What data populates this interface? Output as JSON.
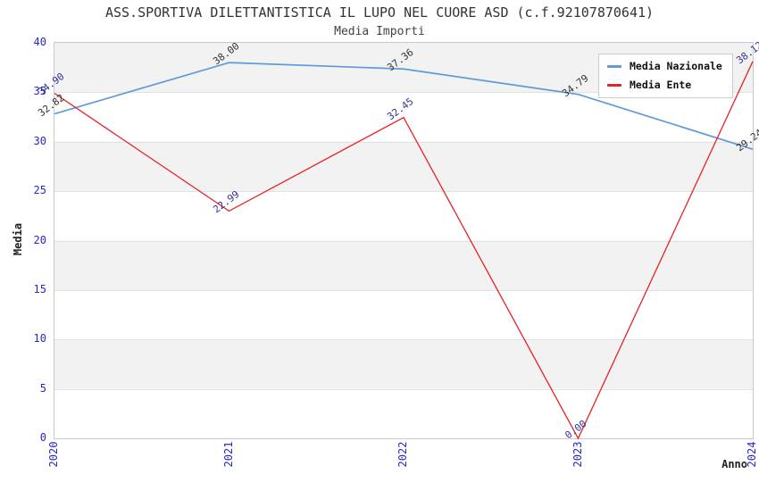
{
  "chart_data": {
    "type": "line",
    "title": "ASS.SPORTIVA DILETTANTISTICA IL LUPO NEL CUORE ASD (c.f.92107870641)",
    "subtitle": "Media Importi",
    "xlabel": "Anno",
    "ylabel": "Media",
    "categories": [
      "2020",
      "2021",
      "2022",
      "2023",
      "2024"
    ],
    "series": [
      {
        "name": "Media Nazionale",
        "color": "#5e9ad8",
        "label_color": "#333333",
        "values": [
          32.82,
          38.0,
          37.36,
          34.79,
          29.24
        ]
      },
      {
        "name": "Media Ente",
        "color": "#e82222",
        "label_color": "#333399",
        "values": [
          34.9,
          22.99,
          32.45,
          0.0,
          38.12
        ]
      }
    ],
    "ylim": [
      0,
      40
    ],
    "y_ticks": [
      0,
      5,
      10,
      15,
      20,
      25,
      30,
      35,
      40
    ],
    "value_label_decimals": 2,
    "legend_position": "top-right",
    "grid": "alternating-horizontal-bands",
    "colors": {
      "tick_label": "#2727cd",
      "band_gray": "#f2f2f2",
      "band_white": "#ffffff",
      "plot_border": "#c9c9c9",
      "gridline": "#e2e2e2",
      "title_text": "#333333"
    }
  }
}
